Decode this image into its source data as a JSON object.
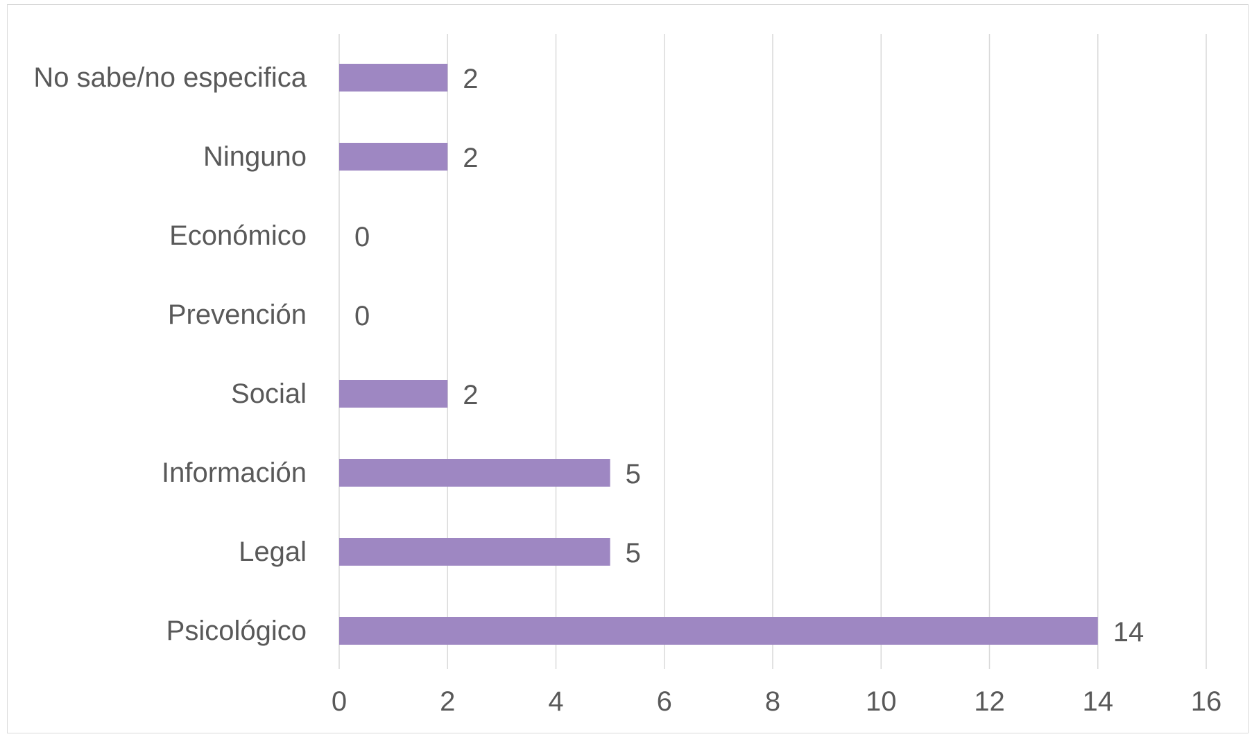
{
  "chart_data": {
    "type": "bar",
    "orientation": "horizontal",
    "categories": [
      "No sabe/no especifica",
      "Ninguno",
      "Económico",
      "Prevención",
      "Social",
      "Información",
      "Legal",
      "Psicológico"
    ],
    "values": [
      2,
      2,
      0,
      0,
      2,
      5,
      5,
      14
    ],
    "data_labels": [
      "2",
      "2",
      "0",
      "0",
      "2",
      "5",
      "5",
      "14"
    ],
    "x_ticks": [
      "0",
      "2",
      "4",
      "6",
      "8",
      "10",
      "12",
      "14",
      "16"
    ],
    "xlim": [
      0,
      16
    ],
    "title": "",
    "xlabel": "",
    "ylabel": "",
    "grid": "vertical",
    "legend": "none",
    "bar_color": "#9e87c2",
    "grid_color": "#d9d9d9",
    "text_color": "#595959"
  }
}
